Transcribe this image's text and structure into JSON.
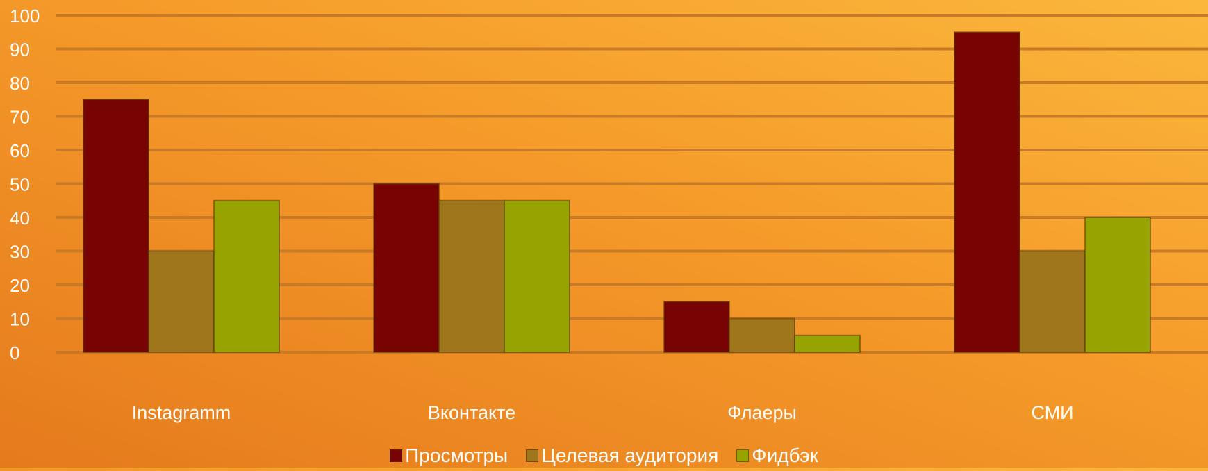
{
  "chart_data": {
    "type": "bar",
    "categories": [
      "Instagramm",
      "Вконтакте",
      "Флаеры",
      "СМИ"
    ],
    "series": [
      {
        "name": "Просмотры",
        "values": [
          75,
          50,
          15,
          95
        ],
        "color": "#770303"
      },
      {
        "name": "Целевая аудитория",
        "values": [
          30,
          45,
          10,
          30
        ],
        "color": "#a0761c"
      },
      {
        "name": "Фидбэк",
        "values": [
          45,
          45,
          5,
          40
        ],
        "color": "#97a301"
      }
    ],
    "ylim": [
      0,
      100
    ],
    "yticks": [
      0,
      10,
      20,
      30,
      40,
      50,
      60,
      70,
      80,
      90,
      100
    ],
    "grid": true,
    "legend_position": "bottom",
    "title": "",
    "xlabel": "",
    "ylabel": ""
  },
  "colors": {
    "gridline": "#c97a26",
    "axis_text": "#ffffff"
  }
}
